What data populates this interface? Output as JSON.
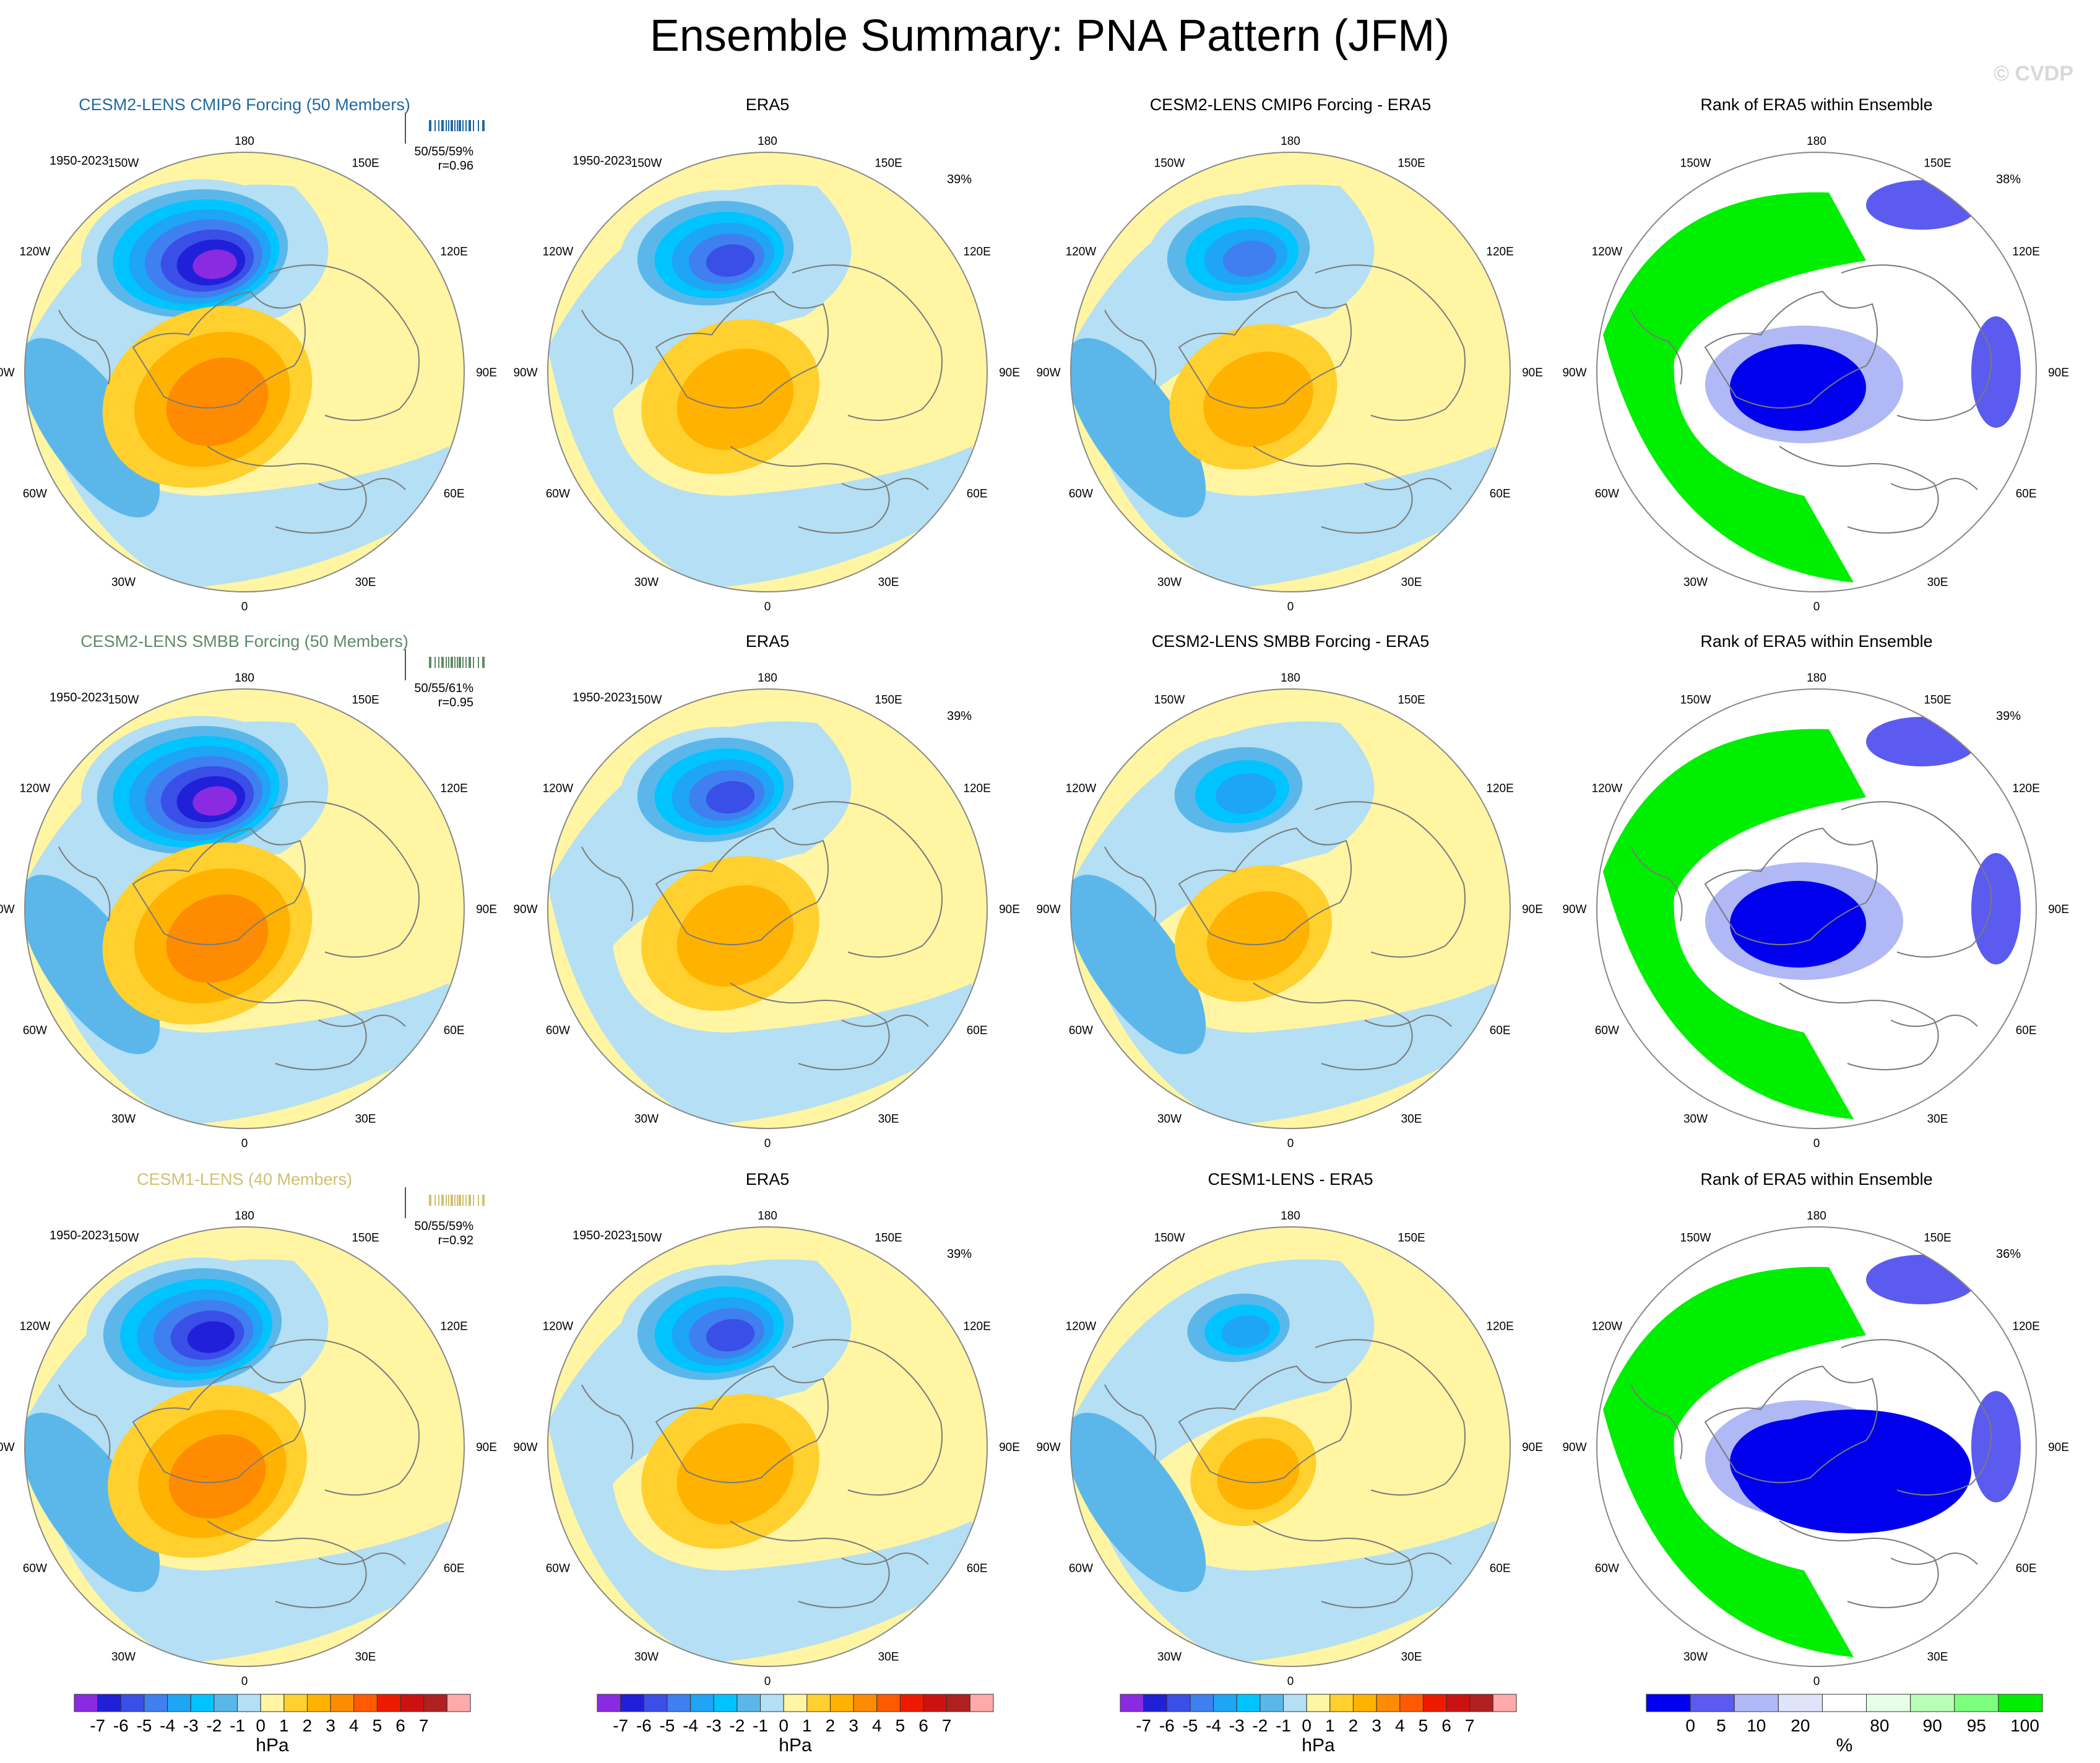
{
  "title": "Ensemble Summary: PNA Pattern (JFM)",
  "watermark": "© CVDP",
  "colors": {
    "diverging": [
      "#8a2be2",
      "#2020d8",
      "#3a4ee8",
      "#3f7ff0",
      "#1ea5f5",
      "#00c4ff",
      "#5bb7ea",
      "#b4dff4",
      "#fff5a3",
      "#ffd02e",
      "#ffb300",
      "#ff8c00",
      "#ff5a00",
      "#ee1a00",
      "#cc1111",
      "#b02020",
      "#ffaaaa"
    ],
    "rank": [
      "#0000ee",
      "#5b5bf0",
      "#b0b8f5",
      "#dfe4fb",
      "#ffffff",
      "#e6ffe6",
      "#b7ffb7",
      "#7cff7c",
      "#00ee00"
    ],
    "ensemble_title_colors": [
      "#1f6aa0",
      "#5d8a68",
      "#d0c070"
    ],
    "land_outline": "#7a7a7a"
  },
  "icons": {
    "circle_map": "polar-stereographic-map",
    "member_ticks": "ensemble-strip-icon"
  },
  "longitude_labels": [
    "180",
    "150E",
    "120E",
    "90E",
    "60E",
    "30E",
    "0",
    "30W",
    "60W",
    "90W",
    "120W",
    "150W"
  ],
  "rows": [
    {
      "panels": [
        {
          "title": "CESM2-LENS CMIP6 Forcing (50 Members)",
          "period": "1950-2023",
          "stats": "50/55/59%",
          "corr": "r=0.96"
        },
        {
          "title": "ERA5",
          "period": "1950-2023",
          "percent": "39%"
        },
        {
          "title": "CESM2-LENS CMIP6 Forcing - ERA5"
        },
        {
          "title": "Rank of ERA5 within Ensemble",
          "percent": "38%"
        }
      ]
    },
    {
      "panels": [
        {
          "title": "CESM2-LENS SMBB Forcing (50 Members)",
          "period": "1950-2023",
          "stats": "50/55/61%",
          "corr": "r=0.95"
        },
        {
          "title": "ERA5",
          "period": "1950-2023",
          "percent": "39%"
        },
        {
          "title": "CESM2-LENS SMBB Forcing - ERA5"
        },
        {
          "title": "Rank of ERA5 within Ensemble",
          "percent": "39%"
        }
      ]
    },
    {
      "panels": [
        {
          "title": "CESM1-LENS (40 Members)",
          "period": "1950-2023",
          "stats": "50/55/59%",
          "corr": "r=0.92"
        },
        {
          "title": "ERA5",
          "period": "1950-2023",
          "percent": "39%"
        },
        {
          "title": "CESM1-LENS - ERA5"
        },
        {
          "title": "Rank of ERA5 within Ensemble",
          "percent": "36%"
        }
      ]
    }
  ],
  "colorbars": [
    {
      "ticks": [
        "-7",
        "-6",
        "-5",
        "-4",
        "-3",
        "-2",
        "-1",
        "0",
        "1",
        "2",
        "3",
        "4",
        "5",
        "6",
        "7"
      ],
      "unit": "hPa"
    },
    {
      "ticks": [
        "-7",
        "-6",
        "-5",
        "-4",
        "-3",
        "-2",
        "-1",
        "0",
        "1",
        "2",
        "3",
        "4",
        "5",
        "6",
        "7"
      ],
      "unit": "hPa"
    },
    {
      "ticks": [
        "-7",
        "-6",
        "-5",
        "-4",
        "-3",
        "-2",
        "-1",
        "0",
        "1",
        "2",
        "3",
        "4",
        "5",
        "6",
        "7"
      ],
      "unit": "hPa"
    },
    {
      "ticks": [
        "0",
        "5",
        "10",
        "20",
        "80",
        "90",
        "95",
        "100"
      ],
      "unit": "%"
    }
  ],
  "chart_data": {
    "type": "heatmap",
    "description_kind": "polar stereographic sea-level-pressure anomaly maps",
    "title": "Ensemble Summary: PNA Pattern (JFM)",
    "contour_levels_hPa": [
      -7,
      -6,
      -5,
      -4,
      -3,
      -2,
      -1,
      0,
      1,
      2,
      3,
      4,
      5,
      6,
      7
    ],
    "rank_levels_percent": [
      0,
      5,
      10,
      20,
      80,
      90,
      95,
      100
    ],
    "fields": [
      {
        "panel": "CESM2-LENS CMIP6 Forcing (50 Members)",
        "north_pacific_low_min_hPa": -7,
        "north_america_high_max_hPa": 3
      },
      {
        "panel": "ERA5",
        "north_pacific_low_min_hPa": -5,
        "north_america_high_max_hPa": 2
      },
      {
        "panel": "CESM2-LENS CMIP6 Forcing - ERA5",
        "north_pacific_low_min_hPa": -4,
        "north_america_high_max_hPa": 2
      },
      {
        "panel": "CESM2-LENS SMBB Forcing (50 Members)",
        "north_pacific_low_min_hPa": -7,
        "north_america_high_max_hPa": 3
      },
      {
        "panel": "CESM2-LENS SMBB Forcing - ERA5",
        "north_pacific_low_min_hPa": -3,
        "north_america_high_max_hPa": 2
      },
      {
        "panel": "CESM1-LENS (40 Members)",
        "north_pacific_low_min_hPa": -6,
        "north_america_high_max_hPa": 2
      },
      {
        "panel": "CESM1-LENS - ERA5",
        "north_pacific_low_min_hPa": -3,
        "north_america_high_max_hPa": 2
      }
    ]
  }
}
